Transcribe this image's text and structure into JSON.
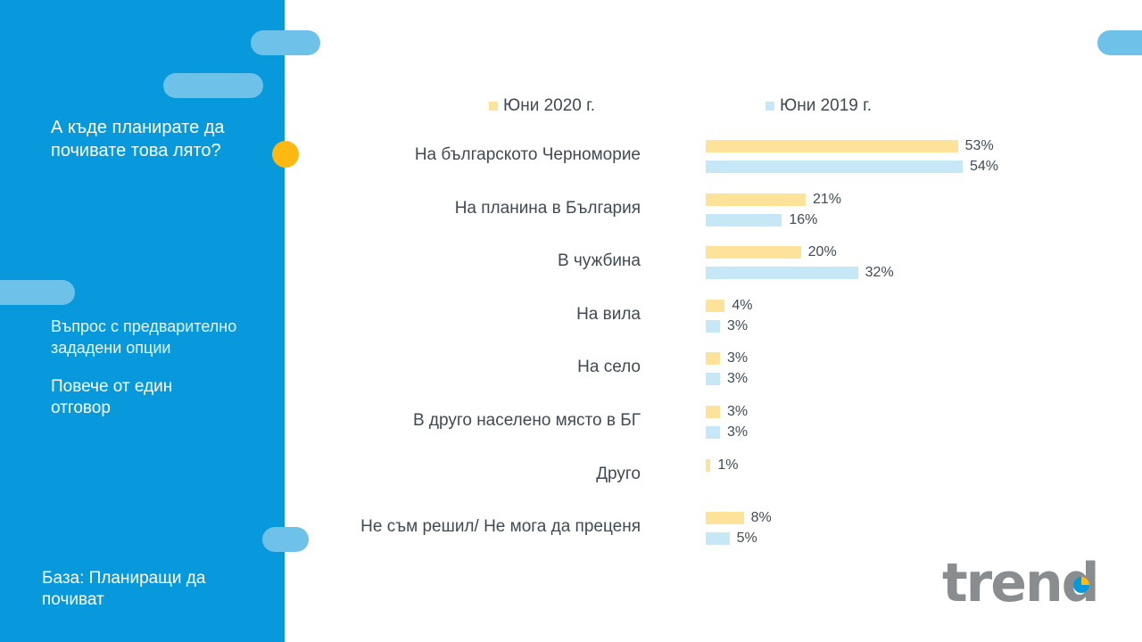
{
  "sidebar": {
    "question": "А къде планирате да почивате това лято?",
    "note1": "Въпрос с предварително зададени опции",
    "note2": "Повече от един отговор",
    "base": "База: Планиращи да почиват"
  },
  "logo": {
    "text": "trend",
    "icon": "pie-chart-icon"
  },
  "colors": {
    "sidebar": "#0899dc",
    "series_2020": "#fde39a",
    "series_2019": "#c6e7f6",
    "accent": "#fdb912"
  },
  "chart_data": {
    "type": "bar",
    "orientation": "horizontal",
    "categories": [
      "На българското Черноморие",
      "На планина в България",
      "В чужбина",
      "На вила",
      "На село",
      "В друго населено място в БГ",
      "Друго",
      "Не съм решил/ Не мога да преценя"
    ],
    "series": [
      {
        "name": "Юни 2020 г.",
        "values": [
          53,
          21,
          20,
          4,
          3,
          3,
          1,
          8
        ],
        "labels": [
          "53%",
          "21%",
          "20%",
          "4%",
          "3%",
          "3%",
          "1%",
          "8%"
        ]
      },
      {
        "name": "Юни 2019 г.",
        "values": [
          54,
          16,
          32,
          3,
          3,
          3,
          null,
          5
        ],
        "labels": [
          "54%",
          "16%",
          "32%",
          "3%",
          "3%",
          "3%",
          "",
          "5%"
        ]
      }
    ],
    "legend": "top",
    "grid": false,
    "xlim": [
      0,
      54
    ]
  }
}
